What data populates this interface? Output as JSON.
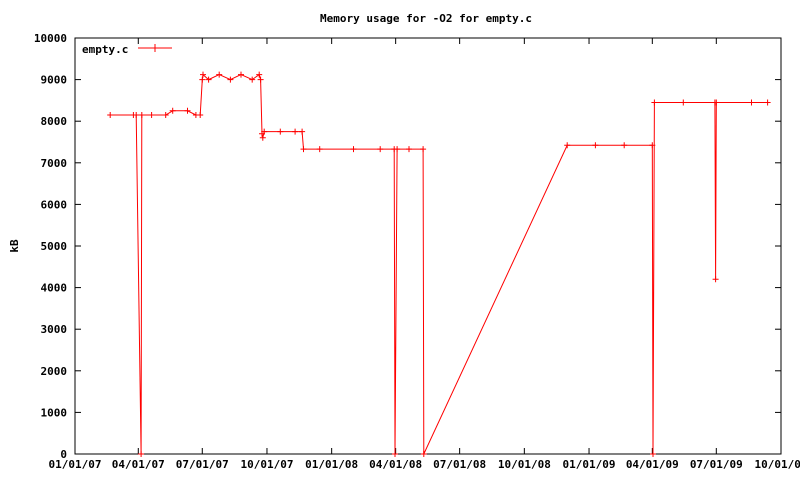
{
  "chart_data": {
    "type": "line",
    "title": "Memory usage for -O2 for empty.c",
    "xlabel": "",
    "ylabel": "kB",
    "xlim": [
      "2007-01-01",
      "2009-10-01"
    ],
    "ylim": [
      0,
      10000
    ],
    "x_ticks": [
      "01/01/07",
      "04/01/07",
      "07/01/07",
      "10/01/07",
      "01/01/08",
      "04/01/08",
      "07/01/08",
      "10/01/08",
      "01/01/09",
      "04/01/09",
      "07/01/09",
      "10/01/09"
    ],
    "y_ticks": [
      "0",
      "1000",
      "2000",
      "3000",
      "4000",
      "5000",
      "6000",
      "7000",
      "8000",
      "9000",
      "10000"
    ],
    "legend_position": "top-left",
    "grid": false,
    "series_color": "#ff0000",
    "series": [
      {
        "name": "empty.c",
        "points": [
          [
            "2007-02-20",
            8150
          ],
          [
            "2007-03-25",
            8150
          ],
          [
            "2007-03-29",
            8150
          ],
          [
            "2007-04-05",
            0
          ],
          [
            "2007-04-06",
            8150
          ],
          [
            "2007-04-20",
            8150
          ],
          [
            "2007-05-10",
            8150
          ],
          [
            "2007-05-20",
            8250
          ],
          [
            "2007-06-10",
            8250
          ],
          [
            "2007-06-22",
            8150
          ],
          [
            "2007-06-28",
            8150
          ],
          [
            "2007-07-01",
            9000
          ],
          [
            "2007-07-02",
            9120
          ],
          [
            "2007-07-10",
            9000
          ],
          [
            "2007-07-25",
            9120
          ],
          [
            "2007-08-10",
            9000
          ],
          [
            "2007-08-25",
            9120
          ],
          [
            "2007-09-10",
            9000
          ],
          [
            "2007-09-20",
            9120
          ],
          [
            "2007-09-22",
            9000
          ],
          [
            "2007-09-24",
            7700
          ],
          [
            "2007-09-25",
            7600
          ],
          [
            "2007-09-27",
            7750
          ],
          [
            "2007-10-20",
            7750
          ],
          [
            "2007-11-10",
            7750
          ],
          [
            "2007-11-20",
            7750
          ],
          [
            "2007-11-22",
            7330
          ],
          [
            "2007-12-15",
            7330
          ],
          [
            "2008-02-01",
            7330
          ],
          [
            "2008-03-10",
            7330
          ],
          [
            "2008-03-30",
            7330
          ],
          [
            "2008-03-31",
            0
          ],
          [
            "2008-04-03",
            7330
          ],
          [
            "2008-04-20",
            7330
          ],
          [
            "2008-05-10",
            7330
          ],
          [
            "2008-05-11",
            0
          ],
          [
            "2008-12-01",
            7420
          ],
          [
            "2009-01-10",
            7420
          ],
          [
            "2009-02-20",
            7420
          ],
          [
            "2009-04-01",
            7420
          ],
          [
            "2009-04-02",
            0
          ],
          [
            "2009-04-04",
            8450
          ],
          [
            "2009-05-15",
            8450
          ],
          [
            "2009-06-29",
            8450
          ],
          [
            "2009-06-30",
            4200
          ],
          [
            "2009-07-01",
            8450
          ],
          [
            "2009-08-20",
            8450
          ],
          [
            "2009-09-12",
            8450
          ]
        ]
      }
    ]
  }
}
